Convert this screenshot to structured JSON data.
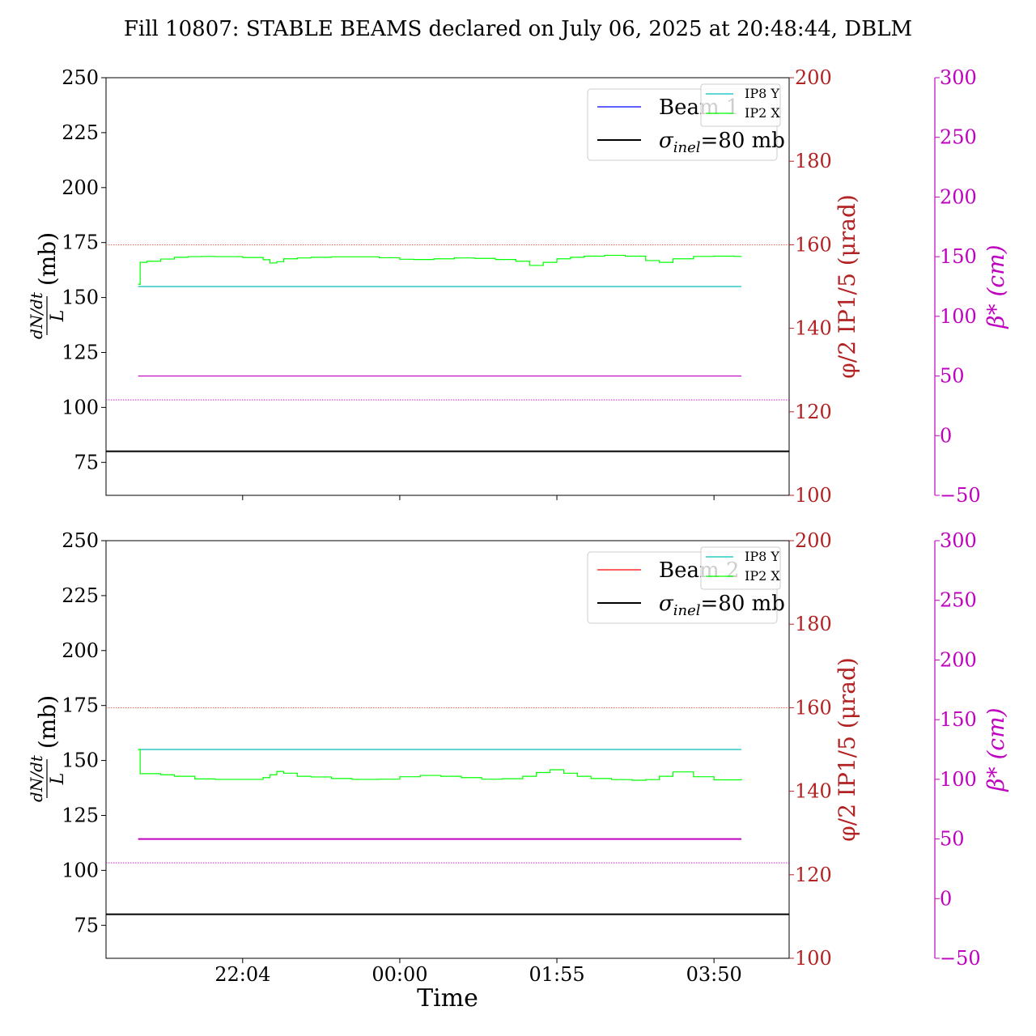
{
  "title": "Fill 10807: STABLE BEAMS declared on July 06, 2025 at 20:48:44, DBLM",
  "xlabel": "Time",
  "colors": {
    "ip8": "#00c0c0",
    "ip2": "#00ff00",
    "beam1": "#0000ff",
    "beam2": "#ff0000",
    "sigma": "#000000",
    "phi_axis": "#b22222",
    "beta_axis": "#c000c0",
    "phi_ref": "#d04020",
    "beta_line": "#c000c0"
  },
  "chart_data": [
    {
      "type": "line",
      "name_label": "Beam 1",
      "sigma_label_prefix": "σ",
      "sigma_label_sub": "inel",
      "sigma_label_suffix": "=80 mb",
      "legend_small": [
        "IP8 Y",
        "IP2 X"
      ],
      "ylabel_left": "dN/dt / L (mb)",
      "ylabel_phi": "φ/2 IP1/5 (μrad)",
      "ylabel_beta": "β* (cm)",
      "ylim_left": [
        60,
        250
      ],
      "ylim_phi": [
        100,
        200
      ],
      "ylim_beta": [
        -50,
        300
      ],
      "yticks_left": [
        75,
        100,
        125,
        150,
        175,
        200,
        225,
        250
      ],
      "yticks_phi": [
        100,
        120,
        140,
        160,
        180,
        200
      ],
      "yticks_beta": [
        -50,
        0,
        50,
        100,
        150,
        200,
        250,
        300
      ],
      "xlim": [
        0,
        10
      ],
      "xticks": [
        {
          "x": 2.0,
          "label": ""
        },
        {
          "x": 4.3,
          "label": ""
        },
        {
          "x": 6.6,
          "label": ""
        },
        {
          "x": 8.9,
          "label": ""
        }
      ],
      "sigma_inel": 80,
      "phi_ref": 160,
      "beta_ref": 30,
      "series": [
        {
          "name": "IP8 Y",
          "x": [
            0.47,
            9.3
          ],
          "y": [
            155,
            155
          ]
        },
        {
          "name": "IP2 X",
          "x": [
            0.47,
            0.5,
            0.6,
            0.8,
            1.0,
            1.2,
            1.4,
            1.6,
            2.0,
            2.3,
            2.4,
            2.5,
            2.6,
            2.8,
            3.0,
            3.3,
            3.6,
            4.0,
            4.3,
            4.5,
            4.8,
            5.1,
            5.4,
            5.7,
            6.0,
            6.2,
            6.4,
            6.6,
            6.8,
            7.0,
            7.3,
            7.6,
            7.9,
            8.1,
            8.3,
            8.6,
            8.9,
            9.2,
            9.3
          ],
          "y": [
            156,
            166,
            166.5,
            167.5,
            168.3,
            168.6,
            168.7,
            168.6,
            168.2,
            167.2,
            165.7,
            166.3,
            167.6,
            168.0,
            168.3,
            168.5,
            168.5,
            168.1,
            167.4,
            167.3,
            167.6,
            168.0,
            167.8,
            167.3,
            166.5,
            164.6,
            166.0,
            167.6,
            168.3,
            168.8,
            169.2,
            168.8,
            166.8,
            166.0,
            167.6,
            168.7,
            168.8,
            168.7,
            168.5
          ]
        },
        {
          "name": "β*",
          "x": [
            0.47,
            9.3
          ],
          "y_beta": [
            50,
            50
          ]
        }
      ]
    },
    {
      "type": "line",
      "name_label": "Beam 2",
      "sigma_label_prefix": "σ",
      "sigma_label_sub": "inel",
      "sigma_label_suffix": "=80 mb",
      "legend_small": [
        "IP8 Y",
        "IP2 X"
      ],
      "ylabel_left": "dN/dt / L (mb)",
      "ylabel_phi": "φ/2 IP1/5 (μrad)",
      "ylabel_beta": "β* (cm)",
      "ylim_left": [
        60,
        250
      ],
      "ylim_phi": [
        100,
        200
      ],
      "ylim_beta": [
        -50,
        300
      ],
      "yticks_left": [
        75,
        100,
        125,
        150,
        175,
        200,
        225,
        250
      ],
      "yticks_phi": [
        100,
        120,
        140,
        160,
        180,
        200
      ],
      "yticks_beta": [
        -50,
        0,
        50,
        100,
        150,
        200,
        250,
        300
      ],
      "xlim": [
        0,
        10
      ],
      "xticks": [
        {
          "x": 2.0,
          "label": "22:04"
        },
        {
          "x": 4.3,
          "label": "00:00"
        },
        {
          "x": 6.6,
          "label": "01:55"
        },
        {
          "x": 8.9,
          "label": "03:50"
        }
      ],
      "sigma_inel": 80,
      "phi_ref": 160,
      "beta_ref": 30,
      "series": [
        {
          "name": "IP8 Y",
          "x": [
            0.47,
            9.3
          ],
          "y": [
            155,
            155
          ]
        },
        {
          "name": "IP2 X",
          "x": [
            0.47,
            0.5,
            0.6,
            0.8,
            1.0,
            1.3,
            1.6,
            2.0,
            2.3,
            2.4,
            2.5,
            2.6,
            2.8,
            3.0,
            3.3,
            3.6,
            4.0,
            4.3,
            4.6,
            4.9,
            5.2,
            5.5,
            5.8,
            6.1,
            6.3,
            6.5,
            6.7,
            6.9,
            7.1,
            7.4,
            7.7,
            7.9,
            8.1,
            8.3,
            8.6,
            8.9,
            9.2,
            9.3
          ],
          "y": [
            155,
            144,
            144,
            143.5,
            142.8,
            141.6,
            141.4,
            141.4,
            142.2,
            143.5,
            145.0,
            144.2,
            142.8,
            142.5,
            141.8,
            141.4,
            141.5,
            142.6,
            143.2,
            142.8,
            142.2,
            141.5,
            141.7,
            142.8,
            144.5,
            145.8,
            144.2,
            142.8,
            141.8,
            141.3,
            141.0,
            141.3,
            142.8,
            144.8,
            142.6,
            141.2,
            141.2,
            141.6
          ]
        },
        {
          "name": "β*",
          "x": [
            0.47,
            9.3
          ],
          "y_beta": [
            50,
            50
          ]
        }
      ]
    }
  ]
}
